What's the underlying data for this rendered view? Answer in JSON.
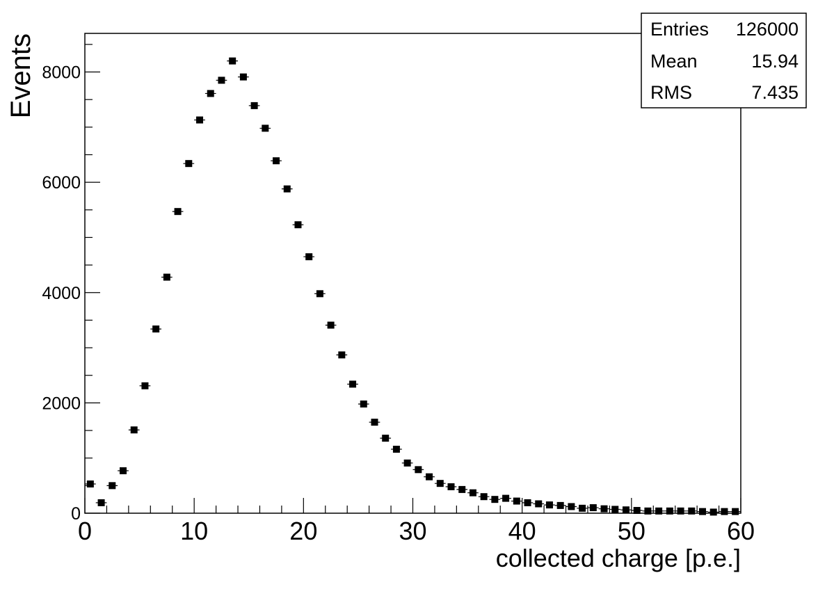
{
  "chart_data": {
    "type": "scatter",
    "title": "",
    "xlabel": "collected charge [p.e.]",
    "ylabel": "Events",
    "xlim": [
      0,
      60
    ],
    "ylim": [
      0,
      8700
    ],
    "x_ticks": [
      0,
      10,
      20,
      30,
      40,
      50,
      60
    ],
    "y_ticks": [
      0,
      2000,
      4000,
      6000,
      8000
    ],
    "x_tick_labels": [
      "0",
      "10",
      "20",
      "30",
      "40",
      "50",
      "60"
    ],
    "y_tick_labels": [
      "0",
      "2000",
      "4000",
      "6000",
      "8000"
    ],
    "grid": false,
    "legend": "none",
    "marker_color": "#000000",
    "bin_width": 1,
    "x": [
      0.5,
      1.5,
      2.5,
      3.5,
      4.5,
      5.5,
      6.5,
      7.5,
      8.5,
      9.5,
      10.5,
      11.5,
      12.5,
      13.5,
      14.5,
      15.5,
      16.5,
      17.5,
      18.5,
      19.5,
      20.5,
      21.5,
      22.5,
      23.5,
      24.5,
      25.5,
      26.5,
      27.5,
      28.5,
      29.5,
      30.5,
      31.5,
      32.5,
      33.5,
      34.5,
      35.5,
      36.5,
      37.5,
      38.5,
      39.5,
      40.5,
      41.5,
      42.5,
      43.5,
      44.5,
      45.5,
      46.5,
      47.5,
      48.5,
      49.5,
      50.5,
      51.5,
      52.5,
      53.5,
      54.5,
      55.5,
      56.5,
      57.5,
      58.5,
      59.5
    ],
    "values": [
      530,
      190,
      500,
      770,
      1510,
      2310,
      3340,
      4280,
      5470,
      6340,
      7130,
      7610,
      7850,
      8200,
      7910,
      7390,
      6980,
      6390,
      5880,
      5230,
      4650,
      3980,
      3410,
      2870,
      2340,
      1980,
      1650,
      1360,
      1160,
      910,
      790,
      660,
      540,
      480,
      430,
      370,
      300,
      250,
      270,
      220,
      190,
      170,
      150,
      140,
      120,
      90,
      100,
      80,
      70,
      60,
      50,
      40,
      40,
      40,
      40,
      40,
      30,
      20,
      30,
      30
    ]
  },
  "stats": {
    "rows": [
      {
        "label": "Entries",
        "value": "126000"
      },
      {
        "label": "Mean",
        "value": "15.94"
      },
      {
        "label": "RMS",
        "value": "7.435"
      }
    ]
  }
}
